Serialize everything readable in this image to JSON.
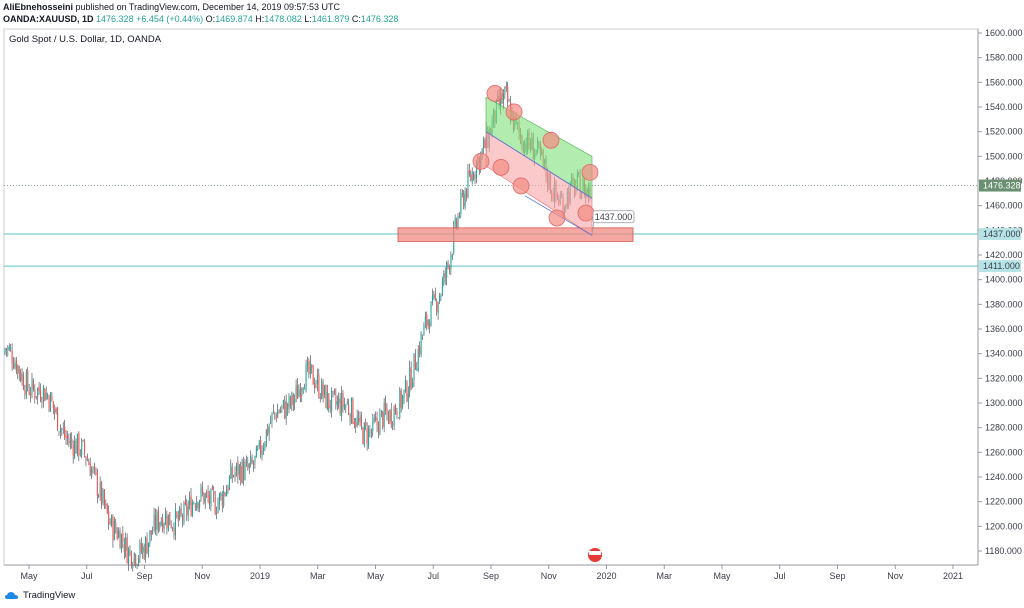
{
  "header": {
    "author": "AliEbnehosseini",
    "published": "published on TradingView.com, December 14, 2019 09:57:53 UTC",
    "symbol": "OANDA:XAUUSD, 1D",
    "last": "1476.328",
    "change": "+6.454 (+0.44%)",
    "o_label": "O:",
    "o_value": "1469.874",
    "h_label": "H:",
    "h_value": "1478.082",
    "l_label": "L:",
    "l_value": "1461.879",
    "c_label": "C:",
    "c_value": "1476.328"
  },
  "footer": {
    "brand": "TradingView"
  },
  "colors": {
    "up": "#26a69a",
    "down": "#ef5350",
    "zone": "#f28b82",
    "channel_green": "#81e07a",
    "channel_red": "#f8a5a5",
    "hline": "#5bc0c8"
  },
  "chart_data": {
    "type": "candlestick",
    "title": "Gold Spot / U.S. Dollar, 1D, OANDA",
    "x_ticks": [
      "May",
      "Jul",
      "Sep",
      "Nov",
      "2019",
      "Mar",
      "May",
      "Jul",
      "Sep",
      "Nov",
      "2020",
      "Mar",
      "May",
      "Jul",
      "Sep",
      "Nov",
      "2021"
    ],
    "y_ticks": [
      "1180.000",
      "1200.000",
      "1220.000",
      "1240.000",
      "1260.000",
      "1280.000",
      "1300.000",
      "1320.000",
      "1340.000",
      "1360.000",
      "1380.000",
      "1400.000",
      "1420.000",
      "1440.000",
      "1460.000",
      "1480.000",
      "1500.000",
      "1520.000",
      "1540.000",
      "1560.000",
      "1580.000",
      "1600.000"
    ],
    "ylim": [
      1168,
      1604
    ],
    "x_range": [
      "2018-04",
      "2021-01"
    ],
    "price_path": [
      [
        "2018-04",
        1340
      ],
      [
        "2018-05",
        1305
      ],
      [
        "2018-06",
        1270
      ],
      [
        "2018-07",
        1230
      ],
      [
        "2018-08",
        1200
      ],
      [
        "2018-08",
        1175
      ],
      [
        "2018-09",
        1200
      ],
      [
        "2018-10",
        1215
      ],
      [
        "2018-11",
        1225
      ],
      [
        "2018-12",
        1245
      ],
      [
        "2019-01",
        1285
      ],
      [
        "2019-02",
        1320
      ],
      [
        "2019-03",
        1305
      ],
      [
        "2019-04",
        1280
      ],
      [
        "2019-05",
        1285
      ],
      [
        "2019-06",
        1340
      ],
      [
        "2019-07",
        1415
      ],
      [
        "2019-08",
        1500
      ],
      [
        "2019-09",
        1545
      ],
      [
        "2019-10",
        1500
      ],
      [
        "2019-11",
        1465
      ],
      [
        "2019-12",
        1476
      ]
    ],
    "levels": [
      {
        "value": 1476.328,
        "label": "1476.328",
        "kind": "last"
      },
      {
        "value": 1437,
        "label": "1437.000",
        "kind": "support"
      },
      {
        "value": 1411,
        "label": "1411.000",
        "kind": "support"
      }
    ],
    "annotation": {
      "label": "1437.000"
    }
  }
}
